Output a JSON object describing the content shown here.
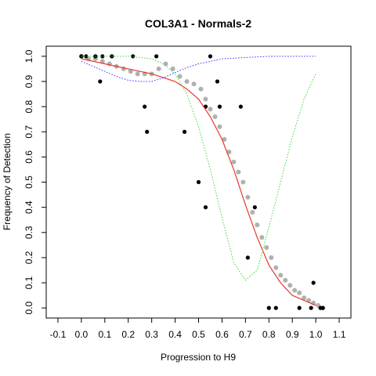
{
  "chart_data": {
    "type": "scatter",
    "title": "COL3A1 - Normals-2",
    "xlabel": "Progression to H9",
    "ylabel": "Frequency of Detection",
    "xlim": [
      -0.15,
      1.15
    ],
    "ylim": [
      -0.04,
      1.04
    ],
    "x_ticks": [
      "-0.1",
      "0.0",
      "0.1",
      "0.2",
      "0.3",
      "0.4",
      "0.5",
      "0.6",
      "0.7",
      "0.8",
      "0.9",
      "1.0",
      "1.1"
    ],
    "x_tick_values": [
      -0.1,
      0.0,
      0.1,
      0.2,
      0.3,
      0.4,
      0.5,
      0.6,
      0.7,
      0.8,
      0.9,
      1.0,
      1.1
    ],
    "y_ticks": [
      "0.0",
      "0.1",
      "0.2",
      "0.3",
      "0.4",
      "0.5",
      "0.6",
      "0.7",
      "0.8",
      "0.9",
      "1.0"
    ],
    "y_tick_values": [
      0.0,
      0.1,
      0.2,
      0.3,
      0.4,
      0.5,
      0.6,
      0.7,
      0.8,
      0.9,
      1.0
    ],
    "grid": false,
    "series": [
      {
        "kind": "points",
        "color": "#000000",
        "x": [
          0.0,
          0.02,
          0.06,
          0.08,
          0.09,
          0.13,
          0.22,
          0.27,
          0.28,
          0.32,
          0.44,
          0.5,
          0.53,
          0.53,
          0.55,
          0.58,
          0.59,
          0.68,
          0.71,
          0.74,
          0.8,
          0.83,
          0.93,
          0.98,
          0.99,
          1.02,
          1.03
        ],
        "y": [
          1.0,
          1.0,
          1.0,
          0.9,
          1.0,
          1.0,
          1.0,
          0.8,
          0.7,
          1.0,
          0.7,
          0.5,
          0.4,
          0.8,
          1.0,
          0.9,
          0.8,
          0.8,
          0.2,
          0.4,
          0.0,
          0.0,
          0.0,
          0.0,
          0.1,
          0.0,
          0.0
        ]
      },
      {
        "kind": "smoothed-points",
        "color": "#b0b0b0",
        "x": [
          0.0,
          0.03,
          0.06,
          0.09,
          0.12,
          0.15,
          0.18,
          0.21,
          0.24,
          0.27,
          0.3,
          0.33,
          0.36,
          0.39,
          0.42,
          0.45,
          0.48,
          0.51,
          0.53,
          0.55,
          0.57,
          0.59,
          0.61,
          0.63,
          0.65,
          0.67,
          0.69,
          0.71,
          0.73,
          0.75,
          0.77,
          0.79,
          0.81,
          0.83,
          0.85,
          0.87,
          0.89,
          0.91,
          0.93,
          0.95,
          0.97,
          0.99,
          1.01,
          1.03
        ],
        "y": [
          1.0,
          0.99,
          0.99,
          0.98,
          0.97,
          0.96,
          0.95,
          0.94,
          0.93,
          0.93,
          0.93,
          0.95,
          0.97,
          0.95,
          0.92,
          0.9,
          0.89,
          0.87,
          0.83,
          0.79,
          0.76,
          0.72,
          0.67,
          0.62,
          0.58,
          0.54,
          0.5,
          0.44,
          0.38,
          0.33,
          0.28,
          0.24,
          0.2,
          0.16,
          0.13,
          0.11,
          0.09,
          0.07,
          0.06,
          0.04,
          0.03,
          0.02,
          0.01,
          0.0
        ]
      },
      {
        "kind": "line",
        "style": "solid",
        "color": "#e8352c",
        "x": [
          0.0,
          0.1,
          0.2,
          0.3,
          0.4,
          0.45,
          0.5,
          0.55,
          0.6,
          0.65,
          0.7,
          0.75,
          0.8,
          0.85,
          0.9,
          0.95,
          1.0
        ],
        "y": [
          0.99,
          0.97,
          0.95,
          0.93,
          0.9,
          0.87,
          0.83,
          0.76,
          0.67,
          0.55,
          0.41,
          0.28,
          0.17,
          0.1,
          0.05,
          0.03,
          0.01
        ]
      },
      {
        "kind": "line",
        "style": "dotted",
        "color": "#2b2bff",
        "x": [
          0.0,
          0.05,
          0.1,
          0.15,
          0.2,
          0.25,
          0.3,
          0.35,
          0.4,
          0.45,
          0.5,
          0.55,
          0.6,
          0.7,
          0.8,
          0.9,
          1.0
        ],
        "y": [
          0.98,
          0.96,
          0.94,
          0.92,
          0.905,
          0.9,
          0.9,
          0.915,
          0.935,
          0.955,
          0.97,
          0.98,
          0.99,
          0.995,
          1.0,
          1.0,
          1.0
        ]
      },
      {
        "kind": "line",
        "style": "dotted",
        "color": "#33dd33",
        "x": [
          0.0,
          0.1,
          0.2,
          0.3,
          0.35,
          0.4,
          0.45,
          0.5,
          0.55,
          0.6,
          0.65,
          0.7,
          0.75,
          0.8,
          0.85,
          0.9,
          0.95,
          1.0
        ],
        "y": [
          1.0,
          1.0,
          1.0,
          0.99,
          0.97,
          0.93,
          0.85,
          0.72,
          0.55,
          0.36,
          0.18,
          0.11,
          0.15,
          0.32,
          0.5,
          0.68,
          0.83,
          0.93
        ]
      }
    ]
  }
}
